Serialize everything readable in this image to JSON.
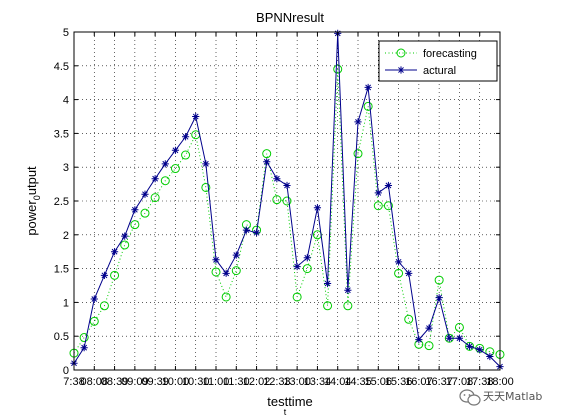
{
  "chart_data": {
    "type": "line",
    "title": "BPNNresult",
    "xlabel": "testtime",
    "xlabel_subscript": "t",
    "ylabel": "power_0utput",
    "ylabel_parts": [
      "power",
      "0",
      "utput"
    ],
    "ylim": [
      0,
      5
    ],
    "xlim": [
      1,
      53
    ],
    "yticks": [
      "0",
      "0.5",
      "1",
      "1.5",
      "2",
      "2.5",
      "3",
      "3.5",
      "4",
      "4.5",
      "5"
    ],
    "xtick_labels": [
      "7:38",
      "08:08",
      "08:39",
      "09:09",
      "09:39",
      "10:00",
      "10:30",
      "11:00",
      "11:30",
      "12:02",
      "12:33",
      "13:00",
      "13:34",
      "14:04",
      "14:35",
      "15:06",
      "15:36",
      "16:07",
      "16:37",
      "17:08",
      "17:38",
      "18:00"
    ],
    "grid": true,
    "legend_position": "top-right",
    "series": [
      {
        "name": "forecasting",
        "style": "circle-dotted",
        "color": "#00cc00",
        "values": [
          0.25,
          0.48,
          0.72,
          0.95,
          1.4,
          1.85,
          2.15,
          2.32,
          2.55,
          2.8,
          2.98,
          3.18,
          3.48,
          2.7,
          1.45,
          1.08,
          1.47,
          2.15,
          2.07,
          3.2,
          2.52,
          2.5,
          1.08,
          1.5,
          2.0,
          0.95,
          4.45,
          0.95,
          3.2,
          3.9,
          2.43,
          2.43,
          1.43,
          0.75,
          0.38,
          0.36,
          1.33,
          0.47,
          0.63,
          0.35,
          0.32,
          0.27,
          0.23
        ]
      },
      {
        "name": "actural",
        "style": "star-solid",
        "color": "#00008b",
        "values": [
          0.1,
          0.33,
          1.05,
          1.4,
          1.75,
          1.98,
          2.37,
          2.6,
          2.83,
          3.05,
          3.25,
          3.45,
          3.75,
          3.05,
          1.63,
          1.43,
          1.7,
          2.07,
          2.03,
          3.08,
          2.83,
          2.73,
          1.53,
          1.66,
          2.4,
          1.28,
          4.98,
          1.18,
          3.67,
          4.18,
          2.62,
          2.73,
          1.6,
          1.43,
          0.45,
          0.62,
          1.07,
          0.47,
          0.47,
          0.35,
          0.3,
          0.2,
          0.05
        ]
      }
    ]
  },
  "watermark": {
    "text": "天天Matlab",
    "icon": "wechat-icon"
  }
}
